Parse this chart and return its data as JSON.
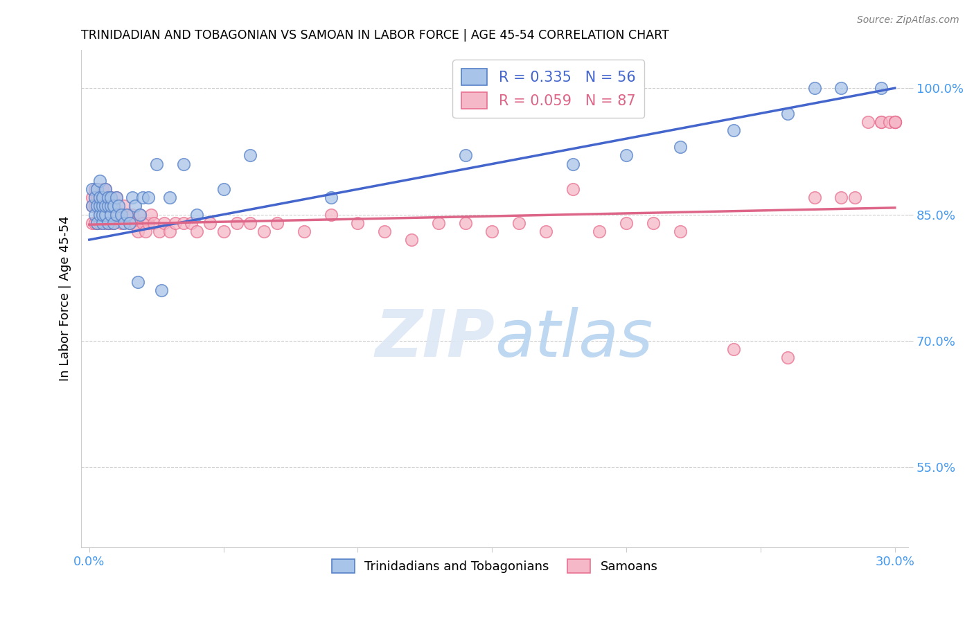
{
  "title": "TRINIDADIAN AND TOBAGONIAN VS SAMOAN IN LABOR FORCE | AGE 45-54 CORRELATION CHART",
  "source": "Source: ZipAtlas.com",
  "ylabel": "In Labor Force | Age 45-54",
  "legend_labels": [
    "Trinidadians and Tobagonians",
    "Samoans"
  ],
  "blue_R": 0.335,
  "blue_N": 56,
  "pink_R": 0.059,
  "pink_N": 87,
  "blue_color": "#a8c4e8",
  "pink_color": "#f5b8c8",
  "blue_edge_color": "#5580c8",
  "pink_edge_color": "#e87090",
  "blue_line_color": "#4466cc",
  "pink_line_color": "#dd6688",
  "watermark_color": "#dce8f5",
  "ytick_color": "#4499ee",
  "xtick_color": "#4499ee",
  "blue_x": [
    0.001,
    0.001,
    0.002,
    0.002,
    0.003,
    0.003,
    0.003,
    0.004,
    0.004,
    0.004,
    0.004,
    0.005,
    0.005,
    0.005,
    0.005,
    0.006,
    0.006,
    0.006,
    0.007,
    0.007,
    0.007,
    0.008,
    0.008,
    0.008,
    0.009,
    0.009,
    0.01,
    0.01,
    0.011,
    0.012,
    0.013,
    0.014,
    0.015,
    0.016,
    0.017,
    0.018,
    0.019,
    0.02,
    0.022,
    0.025,
    0.027,
    0.03,
    0.035,
    0.04,
    0.05,
    0.06,
    0.09,
    0.14,
    0.18,
    0.2,
    0.22,
    0.24,
    0.26,
    0.27,
    0.28,
    0.295
  ],
  "blue_y": [
    0.86,
    0.88,
    0.85,
    0.87,
    0.84,
    0.86,
    0.88,
    0.85,
    0.86,
    0.87,
    0.89,
    0.84,
    0.85,
    0.86,
    0.87,
    0.85,
    0.86,
    0.88,
    0.84,
    0.86,
    0.87,
    0.85,
    0.86,
    0.87,
    0.84,
    0.86,
    0.85,
    0.87,
    0.86,
    0.85,
    0.84,
    0.85,
    0.84,
    0.87,
    0.86,
    0.77,
    0.85,
    0.87,
    0.87,
    0.91,
    0.76,
    0.87,
    0.91,
    0.85,
    0.88,
    0.92,
    0.87,
    0.92,
    0.91,
    0.92,
    0.93,
    0.95,
    0.97,
    1.0,
    1.0,
    1.0
  ],
  "pink_x": [
    0.001,
    0.001,
    0.001,
    0.002,
    0.002,
    0.002,
    0.002,
    0.003,
    0.003,
    0.003,
    0.003,
    0.004,
    0.004,
    0.004,
    0.004,
    0.005,
    0.005,
    0.005,
    0.005,
    0.006,
    0.006,
    0.006,
    0.007,
    0.007,
    0.007,
    0.008,
    0.008,
    0.008,
    0.009,
    0.009,
    0.01,
    0.01,
    0.011,
    0.012,
    0.013,
    0.014,
    0.015,
    0.016,
    0.017,
    0.018,
    0.019,
    0.02,
    0.021,
    0.022,
    0.023,
    0.024,
    0.026,
    0.028,
    0.03,
    0.032,
    0.035,
    0.038,
    0.04,
    0.045,
    0.05,
    0.055,
    0.06,
    0.065,
    0.07,
    0.08,
    0.09,
    0.1,
    0.11,
    0.12,
    0.13,
    0.14,
    0.15,
    0.16,
    0.17,
    0.18,
    0.19,
    0.2,
    0.21,
    0.22,
    0.24,
    0.26,
    0.27,
    0.28,
    0.285,
    0.29,
    0.295,
    0.295,
    0.298,
    0.3,
    0.3,
    0.3,
    0.3
  ],
  "pink_y": [
    0.84,
    0.86,
    0.87,
    0.84,
    0.86,
    0.87,
    0.88,
    0.84,
    0.86,
    0.87,
    0.88,
    0.84,
    0.85,
    0.86,
    0.87,
    0.85,
    0.86,
    0.87,
    0.88,
    0.84,
    0.86,
    0.88,
    0.84,
    0.86,
    0.87,
    0.84,
    0.86,
    0.87,
    0.84,
    0.86,
    0.85,
    0.87,
    0.85,
    0.84,
    0.86,
    0.85,
    0.84,
    0.85,
    0.84,
    0.83,
    0.85,
    0.84,
    0.83,
    0.84,
    0.85,
    0.84,
    0.83,
    0.84,
    0.83,
    0.84,
    0.84,
    0.84,
    0.83,
    0.84,
    0.83,
    0.84,
    0.84,
    0.83,
    0.84,
    0.83,
    0.85,
    0.84,
    0.83,
    0.82,
    0.84,
    0.84,
    0.83,
    0.84,
    0.83,
    0.88,
    0.83,
    0.84,
    0.84,
    0.83,
    0.69,
    0.68,
    0.87,
    0.87,
    0.87,
    0.96,
    0.96,
    0.96,
    0.96,
    0.96,
    0.96,
    0.96,
    0.96
  ],
  "blue_line_x0": 0.0,
  "blue_line_x1": 0.3,
  "blue_line_y0": 0.82,
  "blue_line_y1": 1.0,
  "pink_line_x0": 0.0,
  "pink_line_x1": 0.3,
  "pink_line_y0": 0.838,
  "pink_line_y1": 0.858,
  "xlim": [
    -0.003,
    0.305
  ],
  "ylim": [
    0.455,
    1.045
  ],
  "yticks": [
    0.55,
    0.7,
    0.85,
    1.0
  ],
  "ytick_labels": [
    "55.0%",
    "70.0%",
    "85.0%",
    "100.0%"
  ],
  "xtick_positions": [
    0.0,
    0.05,
    0.1,
    0.15,
    0.2,
    0.25,
    0.3
  ],
  "xtick_labels": [
    "0.0%",
    "",
    "",
    "",
    "",
    "",
    "30.0%"
  ],
  "scatter_size": 160,
  "scatter_alpha": 0.75,
  "scatter_lw": 1.2
}
